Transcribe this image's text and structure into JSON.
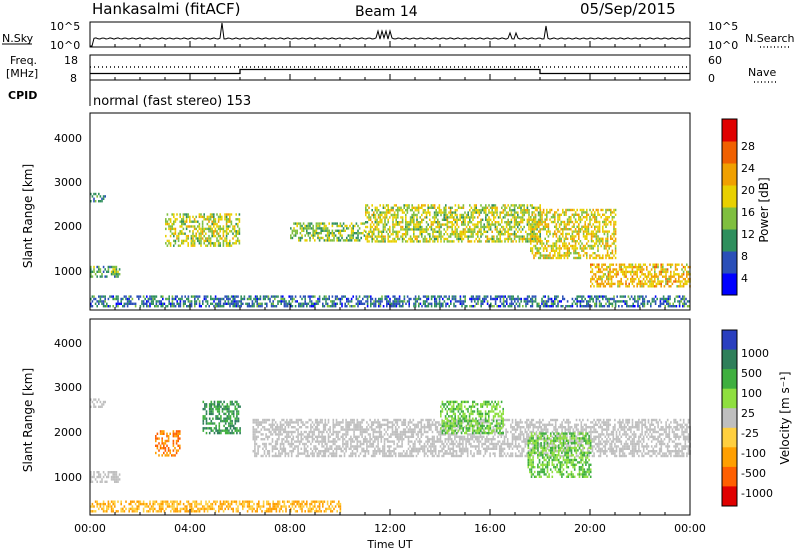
{
  "header": {
    "station": "Hankasalmi (fitACF)",
    "beam": "Beam 14",
    "date": "05/Sep/2015"
  },
  "top_panels": {
    "nsky_label": "N.Sky",
    "nsky_ticks": [
      "10^5",
      "10^0"
    ],
    "nsearch_label": "N.Search",
    "nsearch_ticks": [
      "10^5",
      "10^0"
    ],
    "freq_label_1": "Freq.",
    "freq_label_2": "[MHz]",
    "freq_ticks": [
      "18",
      "8"
    ],
    "nave_label": "Nave",
    "nave_ticks": [
      "60",
      "0"
    ],
    "cpid_label": "CPID",
    "cpid_value": "normal (fast stereo) 153"
  },
  "power_panel": {
    "ylabel": "Slant Range [km]",
    "yticks": [
      "4000",
      "3000",
      "2000",
      "1000"
    ],
    "cbar_label": "Power [dB]",
    "cbar_ticks": [
      "28",
      "24",
      "20",
      "16",
      "12",
      "8",
      "4"
    ],
    "colors": [
      "#0000ff",
      "#2a4fb8",
      "#2f8f5e",
      "#7fbf3f",
      "#e8d000",
      "#f0a000",
      "#f06000",
      "#e00000"
    ]
  },
  "velocity_panel": {
    "ylabel": "Slant Range [km]",
    "yticks": [
      "4000",
      "3000",
      "2000",
      "1000"
    ],
    "cbar_label": "Velocity [m s⁻¹]",
    "cbar_ticks": [
      "1000",
      "500",
      "100",
      "25",
      "-25",
      "-100",
      "-500",
      "-1000"
    ],
    "colors": [
      "#2a3fbf",
      "#2f7f5a",
      "#3faf3f",
      "#8fdf3f",
      "#bfbfbf",
      "#ffcf3f",
      "#ff9f00",
      "#ff5f00",
      "#e00000"
    ]
  },
  "xaxis": {
    "ticks": [
      "00:00",
      "04:00",
      "08:00",
      "12:00",
      "16:00",
      "20:00",
      "00:00"
    ],
    "label": "Time UT"
  },
  "chart_data": [
    {
      "type": "line",
      "xlabel": "",
      "ylabel": "Freq. [MHz]",
      "x": [
        "00:00",
        "06:00",
        "06:00",
        "18:00",
        "18:00",
        "24:00"
      ],
      "series": [
        {
          "name": "Freq.",
          "values": [
            10.6,
            10.6,
            12.2,
            12.2,
            10.6,
            10.6
          ]
        }
      ],
      "ylim": [
        8,
        18
      ]
    },
    {
      "type": "heatmap",
      "title": "Beam 14",
      "xlabel": "Time UT",
      "ylabel": "Slant Range [km]",
      "xlim": [
        0,
        24
      ],
      "ylim": [
        180,
        4500
      ],
      "colorbar_label": "Power [dB]",
      "colorbar_ticks": [
        28,
        24,
        20,
        16,
        12,
        8,
        4
      ],
      "regions": [
        {
          "t": [
            0.0,
            0.6
          ],
          "range": [
            2550,
            2750
          ],
          "value": 10
        },
        {
          "t": [
            0.0,
            1.2
          ],
          "range": [
            900,
            1150
          ],
          "value": 12
        },
        {
          "t": [
            3.0,
            6.0
          ],
          "range": [
            1600,
            2300
          ],
          "value": 16
        },
        {
          "t": [
            8.0,
            11.0
          ],
          "range": [
            1700,
            2100
          ],
          "value": 14
        },
        {
          "t": [
            11.0,
            18.0
          ],
          "range": [
            1700,
            2500
          ],
          "value": 16
        },
        {
          "t": [
            17.6,
            21.0
          ],
          "range": [
            1300,
            2400
          ],
          "value": 18
        },
        {
          "t": [
            20.0,
            24.0
          ],
          "range": [
            700,
            1200
          ],
          "value": 20
        },
        {
          "t": [
            0.0,
            24.0
          ],
          "range": [
            250,
            500
          ],
          "value": 8
        }
      ]
    },
    {
      "type": "heatmap",
      "xlabel": "Time UT",
      "ylabel": "Slant Range [km]",
      "xlim": [
        0,
        24
      ],
      "ylim": [
        180,
        4500
      ],
      "colorbar_label": "Velocity [m s-1]",
      "colorbar_ticks": [
        1000,
        500,
        100,
        25,
        -25,
        -100,
        -500,
        -1000
      ],
      "regions": [
        {
          "t": [
            0.0,
            0.6
          ],
          "range": [
            2550,
            2750
          ],
          "value": 0
        },
        {
          "t": [
            0.0,
            1.2
          ],
          "range": [
            900,
            1150
          ],
          "value": 0
        },
        {
          "t": [
            2.6,
            3.6
          ],
          "range": [
            1500,
            2050
          ],
          "value": -500
        },
        {
          "t": [
            4.5,
            6.0
          ],
          "range": [
            2000,
            2700
          ],
          "value": 500
        },
        {
          "t": [
            6.5,
            24.0
          ],
          "range": [
            1500,
            2300
          ],
          "value": 0
        },
        {
          "t": [
            14.0,
            16.5
          ],
          "range": [
            2000,
            2700
          ],
          "value": 100
        },
        {
          "t": [
            17.5,
            20.0
          ],
          "range": [
            1000,
            2000
          ],
          "value": 100
        },
        {
          "t": [
            0.0,
            10.0
          ],
          "range": [
            250,
            500
          ],
          "value": -100
        }
      ]
    }
  ]
}
